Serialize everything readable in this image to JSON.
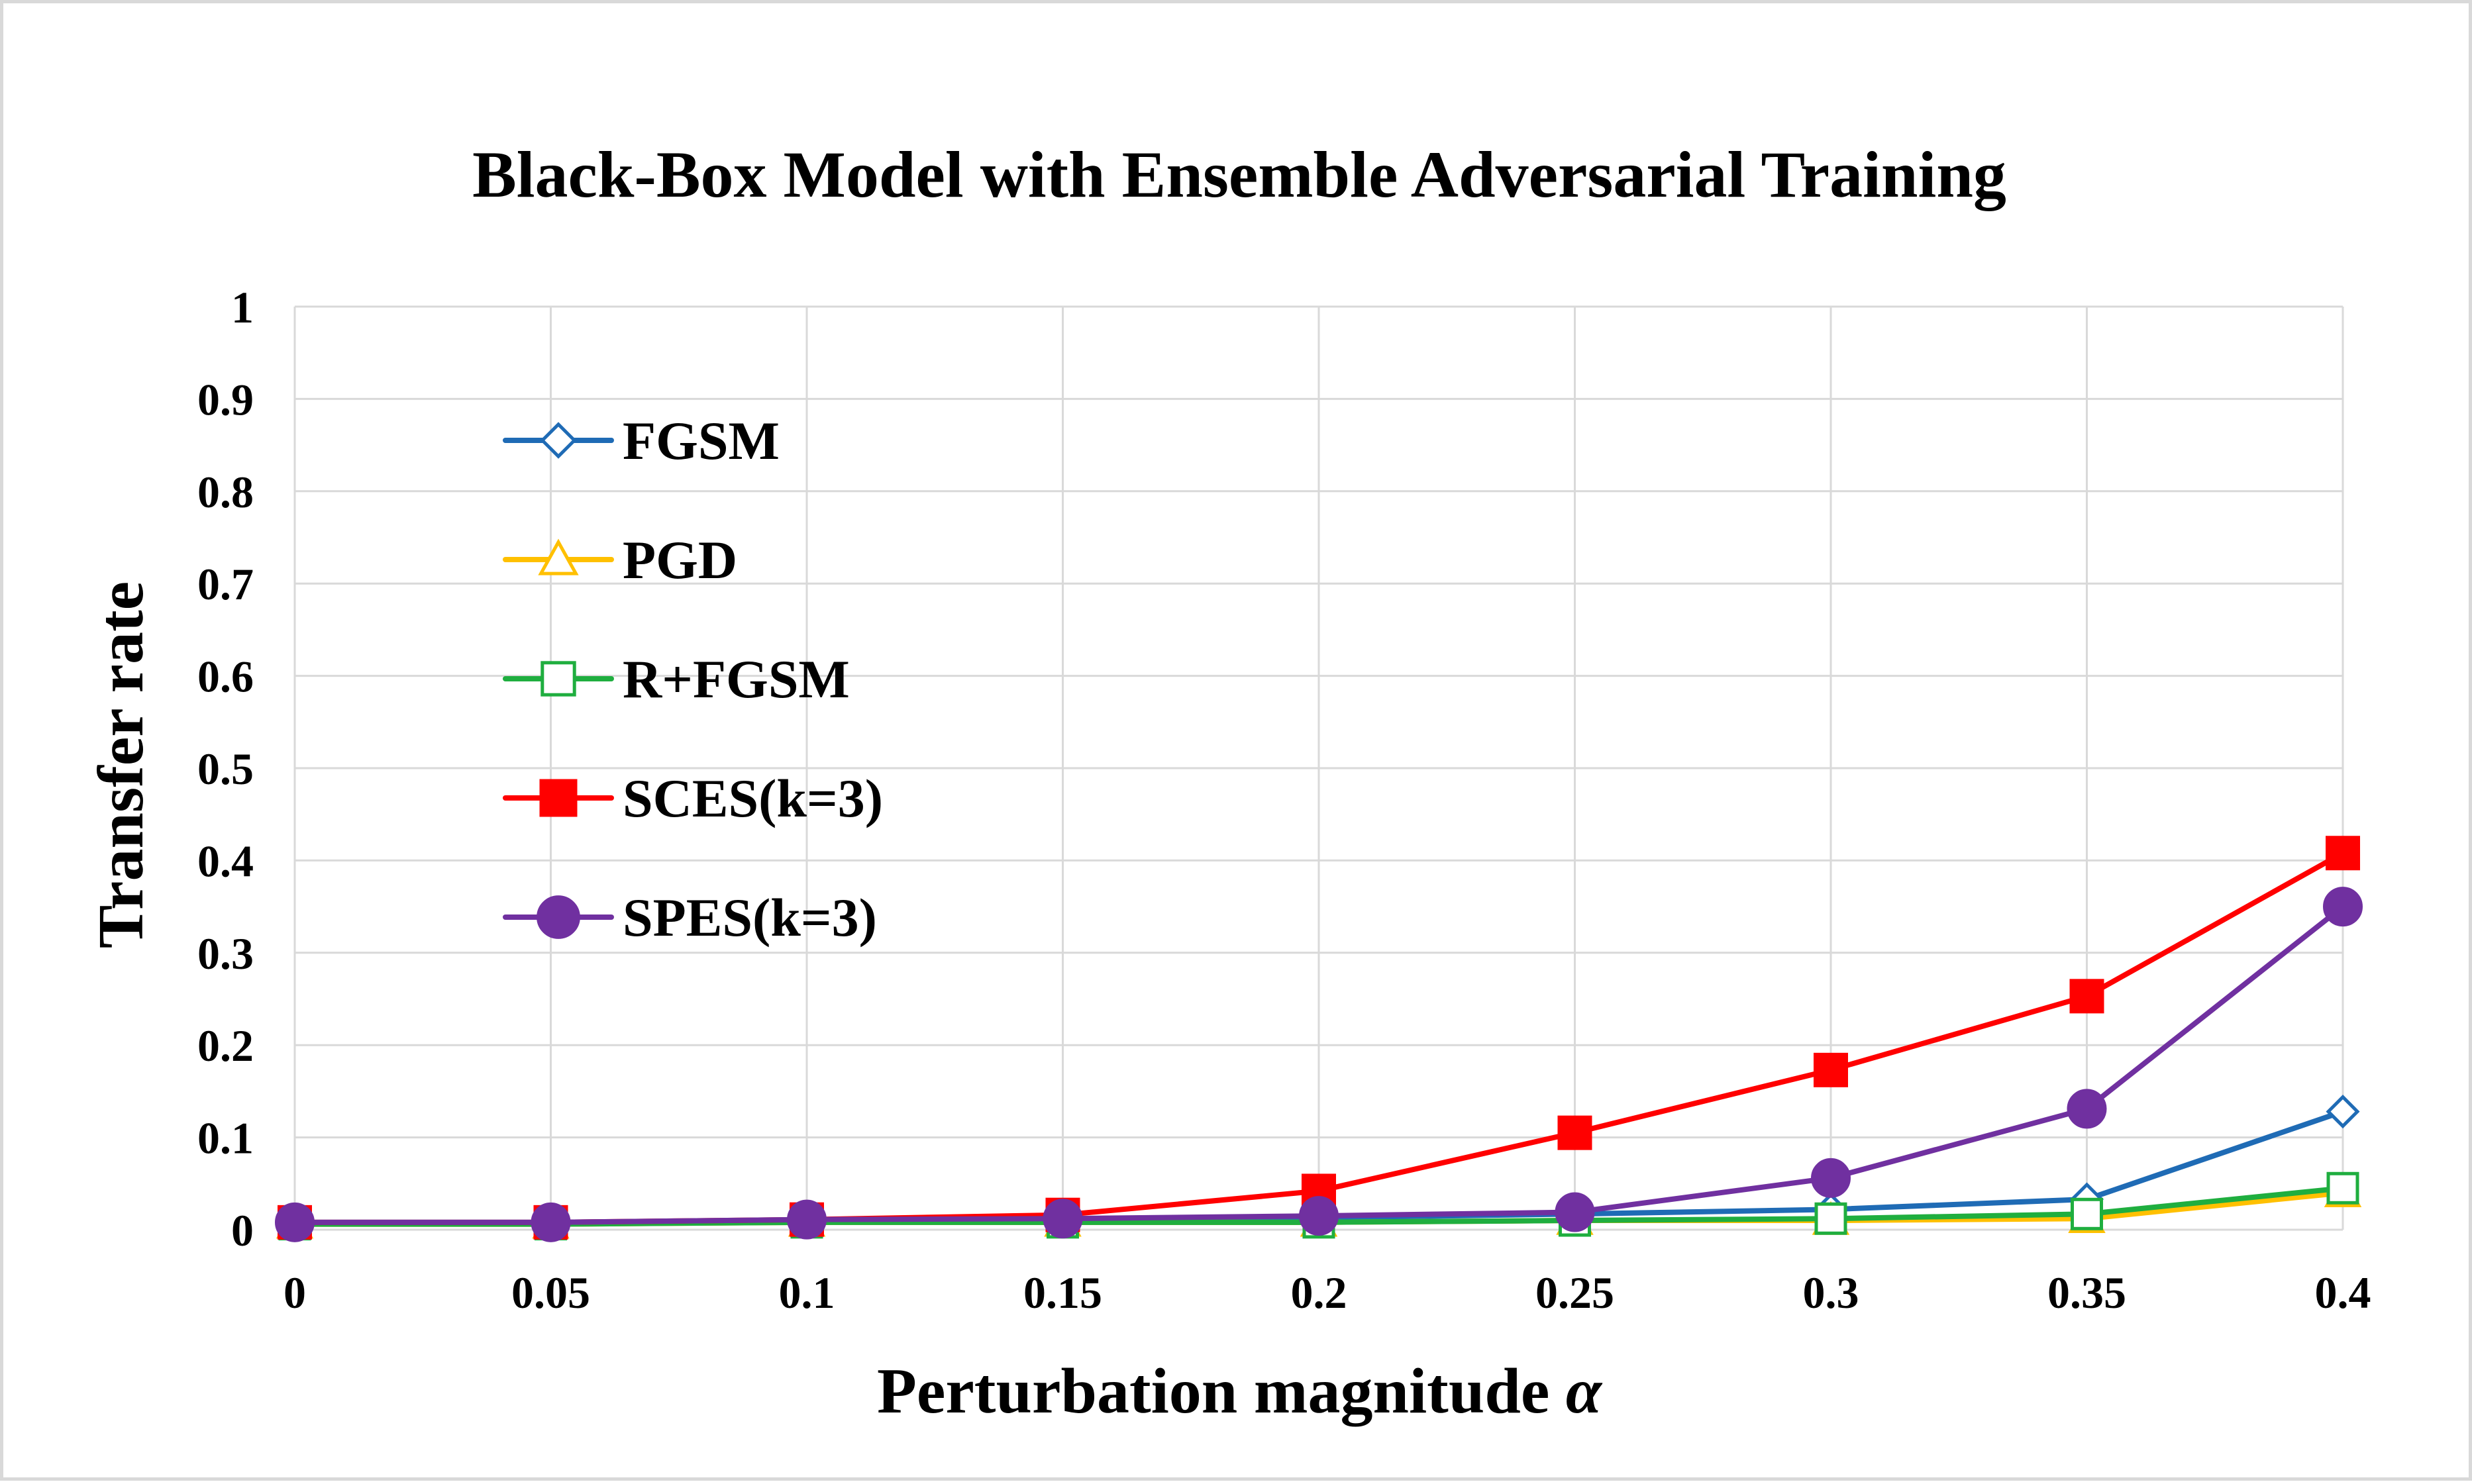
{
  "chart_data": {
    "type": "line",
    "title": "Black-Box Model with Ensemble Adversarial Training",
    "xlabel": "Perturbation magnitude ",
    "xlabel_symbol": "α",
    "ylabel": "Transfer rate",
    "x": [
      0,
      0.05,
      0.1,
      0.15,
      0.2,
      0.25,
      0.3,
      0.35,
      0.4
    ],
    "x_tick_labels": [
      "0",
      "0.05",
      "0.1",
      "0.15",
      "0.2",
      "0.25",
      "0.3",
      "0.35",
      "0.4"
    ],
    "ylim": [
      0,
      1
    ],
    "y_ticks": [
      0,
      0.1,
      0.2,
      0.3,
      0.4,
      0.5,
      0.6,
      0.7,
      0.8,
      0.9,
      1
    ],
    "y_tick_labels": [
      "0",
      "0.1",
      "0.2",
      "0.3",
      "0.4",
      "0.5",
      "0.6",
      "0.7",
      "0.8",
      "0.9",
      "1"
    ],
    "grid": true,
    "legend_position": "top-left inside plot area",
    "series": [
      {
        "name": "FGSM",
        "color": "#1f6bb5",
        "marker": "diamond-open",
        "values": [
          0.008,
          0.008,
          0.01,
          0.012,
          0.013,
          0.017,
          0.022,
          0.033,
          0.128
        ]
      },
      {
        "name": "PGD",
        "color": "#ffc000",
        "marker": "triangle-open",
        "values": [
          0.006,
          0.006,
          0.008,
          0.008,
          0.008,
          0.01,
          0.01,
          0.012,
          0.04
        ]
      },
      {
        "name": "R+FGSM",
        "color": "#1fae3f",
        "marker": "square-open",
        "values": [
          0.006,
          0.006,
          0.008,
          0.008,
          0.008,
          0.01,
          0.012,
          0.017,
          0.045
        ]
      },
      {
        "name": "SCES(k=3)",
        "color": "#ff0000",
        "marker": "square-filled",
        "values": [
          0.008,
          0.008,
          0.011,
          0.016,
          0.042,
          0.105,
          0.173,
          0.253,
          0.408
        ]
      },
      {
        "name": "SPES(k=3)",
        "color": "#7030a0",
        "marker": "circle-filled",
        "values": [
          0.008,
          0.008,
          0.011,
          0.012,
          0.015,
          0.019,
          0.056,
          0.131,
          0.35
        ]
      }
    ]
  }
}
